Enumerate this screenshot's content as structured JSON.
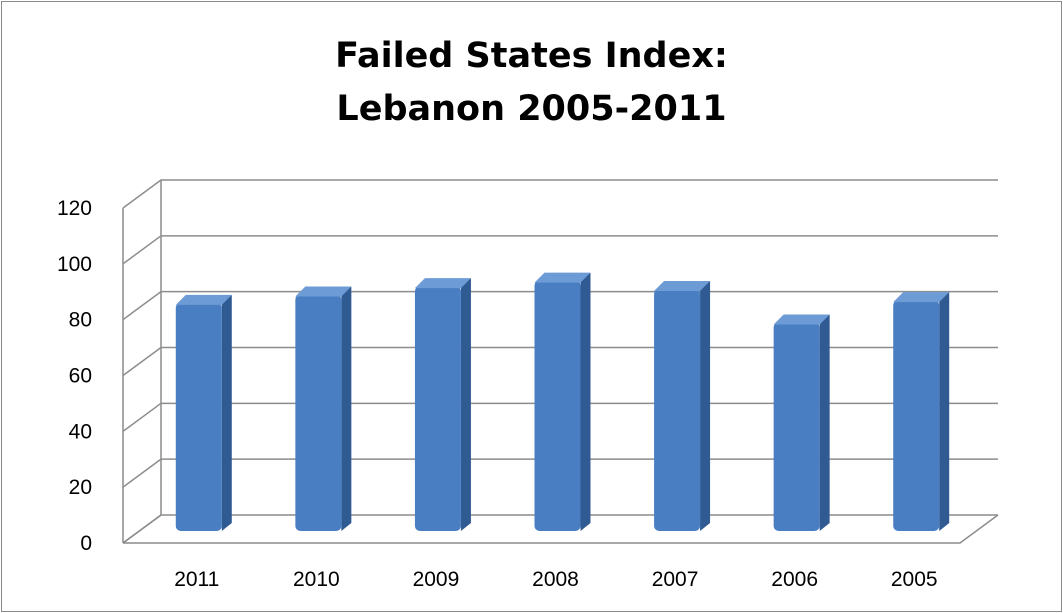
{
  "chart_data": {
    "type": "bar",
    "title_line1": "Failed States Index:",
    "title_line2": "Lebanon 2005-2011",
    "categories": [
      "2011",
      "2010",
      "2009",
      "2008",
      "2007",
      "2006",
      "2005"
    ],
    "values": [
      86,
      89,
      92,
      94,
      91,
      79,
      87
    ],
    "ylim": [
      0,
      120
    ],
    "yticks": [
      "0",
      "20",
      "40",
      "60",
      "80",
      "100",
      "120"
    ],
    "grid": true,
    "bar_color": "#4a7ec2",
    "bar_side_color": "#2f5a92",
    "bar_top_color": "#6c9bd6"
  }
}
